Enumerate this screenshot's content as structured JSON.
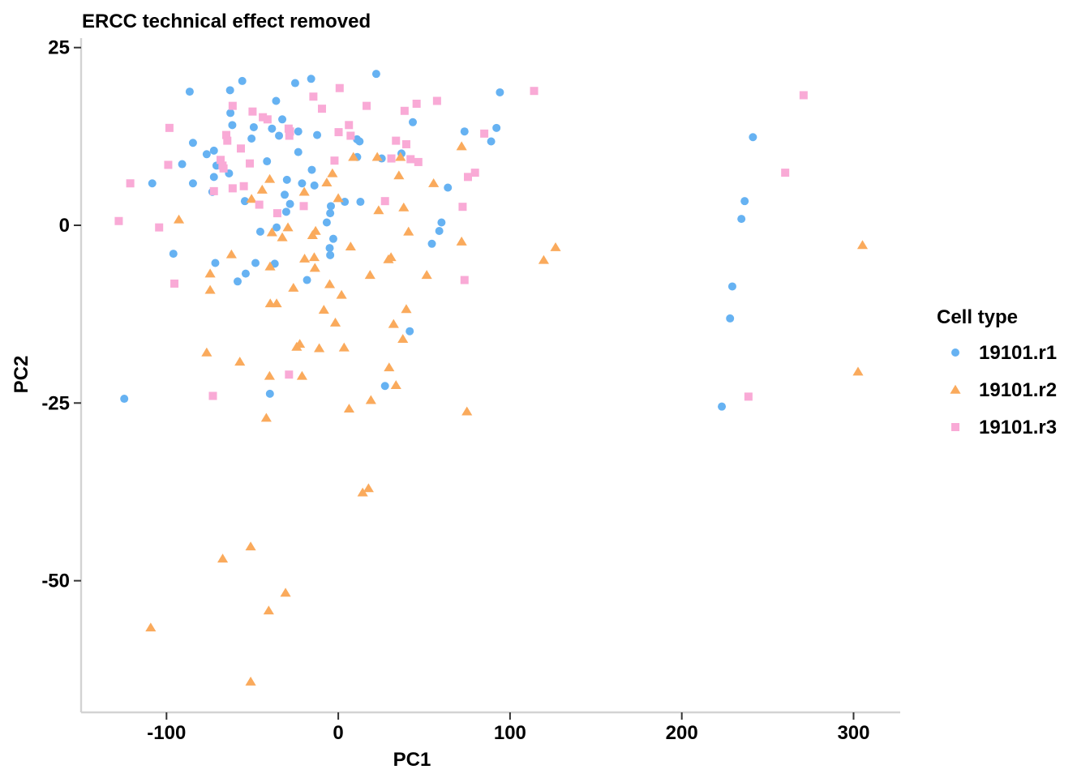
{
  "chart_data": {
    "type": "scatter",
    "title": "ERCC technical effect removed",
    "xlabel": "PC1",
    "ylabel": "PC2",
    "xlim": [
      -150,
      327
    ],
    "ylim": [
      -68,
      25
    ],
    "x_ticks": [
      -100,
      0,
      100,
      200,
      300
    ],
    "y_ticks": [
      -50,
      -25,
      0,
      25
    ],
    "x_tick_labels": [
      "-100",
      "0",
      "100",
      "200",
      "300"
    ],
    "y_tick_labels": [
      "-50",
      "-25",
      "0",
      "25"
    ],
    "grid": false,
    "legend": {
      "title": "Cell type",
      "position": "right"
    },
    "series": [
      {
        "name": "19101.r1",
        "color": "#66B2F2",
        "marker": "circle",
        "points": [
          [
            -124.6,
            -24.4
          ],
          [
            -108.3,
            5.9
          ],
          [
            -96.0,
            -4.0
          ],
          [
            -90.9,
            8.6
          ],
          [
            -86.5,
            18.8
          ],
          [
            -84.6,
            11.6
          ],
          [
            -84.6,
            5.9
          ],
          [
            -76.6,
            10.0
          ],
          [
            -73.3,
            4.7
          ],
          [
            -72.4,
            10.5
          ],
          [
            -72.4,
            6.8
          ],
          [
            -71.6,
            -5.3
          ],
          [
            -70.9,
            8.4
          ],
          [
            -62.8,
            15.8
          ],
          [
            -63.0,
            19.0
          ],
          [
            -63.6,
            7.3
          ],
          [
            -61.7,
            14.1
          ],
          [
            -58.6,
            -7.9
          ],
          [
            -55.9,
            20.3
          ],
          [
            -54.4,
            3.4
          ],
          [
            -53.9,
            -6.8
          ],
          [
            -50.5,
            12.2
          ],
          [
            -49.2,
            13.8
          ],
          [
            -48.2,
            -5.3
          ],
          [
            -45.4,
            -0.9
          ],
          [
            -41.5,
            9.0
          ],
          [
            -38.6,
            13.6
          ],
          [
            -39.8,
            -23.7
          ],
          [
            -37.0,
            -5.4
          ],
          [
            -36.2,
            17.5
          ],
          [
            -35.9,
            -0.3
          ],
          [
            -34.5,
            12.6
          ],
          [
            -32.6,
            14.9
          ],
          [
            -31.2,
            4.3
          ],
          [
            -30.3,
            1.9
          ],
          [
            -29.9,
            6.4
          ],
          [
            -28.1,
            3.0
          ],
          [
            -25.1,
            20.0
          ],
          [
            -23.3,
            13.2
          ],
          [
            -23.3,
            10.3
          ],
          [
            -21.1,
            5.9
          ],
          [
            -18.2,
            -7.7
          ],
          [
            -15.8,
            20.6
          ],
          [
            -15.4,
            7.8
          ],
          [
            -13.9,
            5.6
          ],
          [
            -12.3,
            12.7
          ],
          [
            -6.7,
            0.4
          ],
          [
            -5.0,
            -3.2
          ],
          [
            -4.7,
            -4.2
          ],
          [
            -4.3,
            2.7
          ],
          [
            -4.7,
            1.7
          ],
          [
            -2.9,
            -1.9
          ],
          [
            3.8,
            3.3
          ],
          [
            10.9,
            12.1
          ],
          [
            11.0,
            9.6
          ],
          [
            12.4,
            11.8
          ],
          [
            12.9,
            3.3
          ],
          [
            22.1,
            21.3
          ],
          [
            25.3,
            9.4
          ],
          [
            27.2,
            -22.6
          ],
          [
            36.8,
            10.1
          ],
          [
            41.6,
            -14.9
          ],
          [
            43.4,
            14.5
          ],
          [
            54.5,
            -2.6
          ],
          [
            58.8,
            -0.8
          ],
          [
            60.1,
            0.4
          ],
          [
            63.8,
            5.3
          ],
          [
            73.5,
            13.2
          ],
          [
            89.0,
            11.8
          ],
          [
            92.1,
            13.7
          ],
          [
            94.1,
            18.7
          ],
          [
            223.3,
            -25.5
          ],
          [
            228.1,
            -13.1
          ],
          [
            229.4,
            -8.6
          ],
          [
            234.7,
            0.9
          ],
          [
            236.6,
            3.4
          ],
          [
            241.4,
            12.4
          ]
        ]
      },
      {
        "name": "19101.r2",
        "color": "#FAAA5C",
        "marker": "triangle",
        "points": [
          [
            -109.2,
            -56.6
          ],
          [
            -92.8,
            0.8
          ],
          [
            -76.6,
            -17.9
          ],
          [
            -74.6,
            -6.8
          ],
          [
            -74.6,
            -9.1
          ],
          [
            -67.3,
            -46.9
          ],
          [
            -62.2,
            -4.1
          ],
          [
            -57.3,
            -19.2
          ],
          [
            -51.0,
            -45.2
          ],
          [
            -51.0,
            -64.2
          ],
          [
            -50.5,
            3.7
          ],
          [
            -44.3,
            5.0
          ],
          [
            -41.9,
            -27.1
          ],
          [
            -40.5,
            -54.2
          ],
          [
            -40.0,
            -21.2
          ],
          [
            -39.6,
            -11.0
          ],
          [
            -39.7,
            -5.8
          ],
          [
            -39.9,
            6.5
          ],
          [
            -38.6,
            -1.0
          ],
          [
            -35.9,
            -11.0
          ],
          [
            -32.6,
            -1.7
          ],
          [
            -30.7,
            -51.7
          ],
          [
            -29.3,
            -0.3
          ],
          [
            -26.1,
            -8.8
          ],
          [
            -24.2,
            -17.1
          ],
          [
            -22.4,
            -16.7
          ],
          [
            -21.1,
            -21.2
          ],
          [
            -19.8,
            4.7
          ],
          [
            -19.6,
            -4.7
          ],
          [
            -15.0,
            -1.4
          ],
          [
            -14.0,
            -4.5
          ],
          [
            -13.6,
            -6.0
          ],
          [
            -13.2,
            -0.8
          ],
          [
            -11.1,
            -17.3
          ],
          [
            -8.4,
            -11.9
          ],
          [
            -6.7,
            6.0
          ],
          [
            -5.0,
            -8.3
          ],
          [
            -3.4,
            7.3
          ],
          [
            -1.7,
            -13.7
          ],
          [
            0.0,
            3.8
          ],
          [
            1.9,
            -9.8
          ],
          [
            3.4,
            -17.2
          ],
          [
            6.3,
            -25.8
          ],
          [
            7.2,
            -3.0
          ],
          [
            8.8,
            9.6
          ],
          [
            14.2,
            -37.6
          ],
          [
            17.6,
            -37.0
          ],
          [
            18.5,
            -7.0
          ],
          [
            19.0,
            -24.6
          ],
          [
            22.7,
            9.6
          ],
          [
            23.5,
            2.1
          ],
          [
            29.2,
            -4.8
          ],
          [
            29.6,
            -20.0
          ],
          [
            30.7,
            -4.5
          ],
          [
            32.2,
            -13.9
          ],
          [
            33.6,
            -22.5
          ],
          [
            35.3,
            7.0
          ],
          [
            36.2,
            9.6
          ],
          [
            37.6,
            -16.0
          ],
          [
            38.1,
            2.5
          ],
          [
            39.6,
            -11.8
          ],
          [
            40.9,
            -0.9
          ],
          [
            51.5,
            -7.0
          ],
          [
            55.5,
            5.9
          ],
          [
            71.8,
            11.1
          ],
          [
            71.8,
            -2.3
          ],
          [
            74.9,
            -26.2
          ],
          [
            119.6,
            -4.9
          ],
          [
            126.5,
            -3.1
          ],
          [
            302.6,
            -20.6
          ],
          [
            305.2,
            -2.8
          ]
        ]
      },
      {
        "name": "19101.r3",
        "color": "#F9AAD6",
        "marker": "square",
        "points": [
          [
            -127.8,
            0.6
          ],
          [
            -121.1,
            5.9
          ],
          [
            -104.3,
            -0.3
          ],
          [
            -99.0,
            8.5
          ],
          [
            -98.3,
            13.7
          ],
          [
            -95.4,
            -8.2
          ],
          [
            -73.0,
            -24.0
          ],
          [
            -72.4,
            4.8
          ],
          [
            -68.5,
            9.2
          ],
          [
            -67.4,
            8.4
          ],
          [
            -66.8,
            8.0
          ],
          [
            -65.2,
            12.7
          ],
          [
            -64.6,
            11.9
          ],
          [
            -61.5,
            5.2
          ],
          [
            -61.5,
            16.8
          ],
          [
            -56.7,
            10.8
          ],
          [
            -55.0,
            5.5
          ],
          [
            -51.5,
            8.7
          ],
          [
            -49.9,
            16.0
          ],
          [
            -46.0,
            2.9
          ],
          [
            -43.9,
            15.2
          ],
          [
            -41.2,
            14.9
          ],
          [
            -35.5,
            1.7
          ],
          [
            -28.9,
            13.6
          ],
          [
            -28.7,
            -21.0
          ],
          [
            -28.5,
            12.6
          ],
          [
            -28.1,
            13.2
          ],
          [
            -20.1,
            2.7
          ],
          [
            -14.5,
            18.1
          ],
          [
            -9.5,
            16.4
          ],
          [
            -2.2,
            9.1
          ],
          [
            0.2,
            13.1
          ],
          [
            0.8,
            19.3
          ],
          [
            6.2,
            14.1
          ],
          [
            7.2,
            12.6
          ],
          [
            16.5,
            16.8
          ],
          [
            27.2,
            3.4
          ],
          [
            30.9,
            9.4
          ],
          [
            33.6,
            11.9
          ],
          [
            38.6,
            16.1
          ],
          [
            39.6,
            11.4
          ],
          [
            42.1,
            9.3
          ],
          [
            45.6,
            17.1
          ],
          [
            46.6,
            8.9
          ],
          [
            57.5,
            17.5
          ],
          [
            72.4,
            2.6
          ],
          [
            73.5,
            -7.7
          ],
          [
            75.5,
            6.8
          ],
          [
            79.6,
            7.4
          ],
          [
            85.0,
            12.9
          ],
          [
            114.0,
            18.9
          ],
          [
            238.8,
            -24.1
          ],
          [
            260.2,
            7.4
          ],
          [
            270.9,
            18.3
          ]
        ]
      }
    ]
  }
}
